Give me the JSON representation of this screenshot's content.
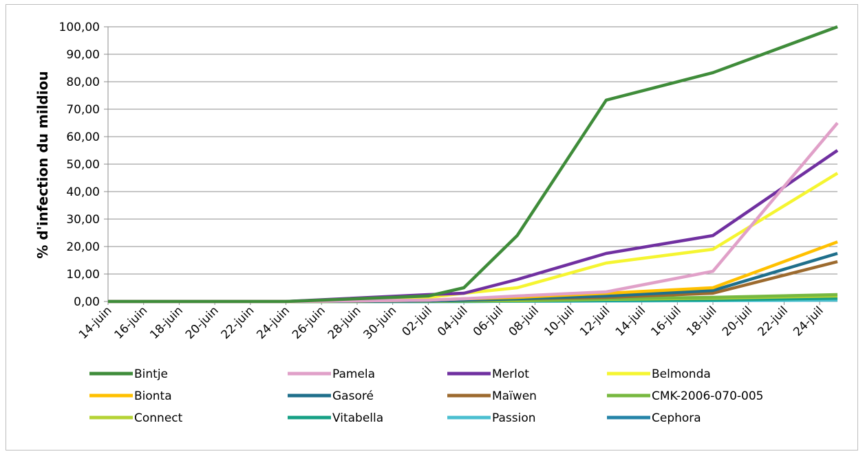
{
  "chart_data": {
    "type": "line",
    "title": "",
    "xlabel": "",
    "ylabel": "% d'infection du mildiou",
    "ylim": [
      0,
      100
    ],
    "y_ticks": [
      "0,00",
      "10,00",
      "20,00",
      "30,00",
      "40,00",
      "50,00",
      "60,00",
      "70,00",
      "80,00",
      "90,00",
      "100,00"
    ],
    "x_ticks": [
      "14-juin",
      "16-juin",
      "18-juin",
      "20-juin",
      "22-juin",
      "24-juin",
      "26-juin",
      "28-juin",
      "30-juin",
      "02-juil",
      "04-juil",
      "06-juil",
      "08-juil",
      "10-juil",
      "12-juil",
      "14-juil",
      "16-juil",
      "18-juil",
      "20-juil",
      "22-juil",
      "24-juil"
    ],
    "grid": "horizontal",
    "legend_position": "bottom",
    "x": [
      "14-juin",
      "24-juin",
      "02-juil",
      "04-juil",
      "07-juil",
      "12-juil",
      "18-juil",
      "25-juil"
    ],
    "series": [
      {
        "name": "Bintje",
        "color": "#3f8c3a",
        "values": [
          0,
          0,
          2,
          5,
          24,
          73.3,
          83.3,
          100
        ]
      },
      {
        "name": "Pamela",
        "color": "#e0a0c8",
        "values": [
          0,
          0,
          0.5,
          1,
          2,
          3.5,
          11,
          65
        ]
      },
      {
        "name": "Merlot",
        "color": "#7030a0",
        "values": [
          0,
          0,
          2.5,
          3,
          8,
          17.5,
          24,
          55
        ]
      },
      {
        "name": "Belmonda",
        "color": "#f5f531",
        "values": [
          0,
          0,
          1.5,
          3,
          5,
          14,
          19,
          46.7
        ]
      },
      {
        "name": "Bionta",
        "color": "#ffc000",
        "values": [
          0,
          0,
          0.5,
          1,
          1.5,
          3,
          5,
          21.7
        ]
      },
      {
        "name": "Gasoré",
        "color": "#1f6f8b",
        "values": [
          0,
          0,
          0.2,
          0.5,
          1,
          2,
          4,
          17.5
        ]
      },
      {
        "name": "Maïwen",
        "color": "#9c6a2e",
        "values": [
          0,
          0,
          0.2,
          0.5,
          1,
          1.5,
          3,
          14.5
        ]
      },
      {
        "name": "CMK-2006-070-005",
        "color": "#77b83f",
        "values": [
          0,
          0,
          0.1,
          0.2,
          0.5,
          1,
          1.5,
          2.5
        ]
      },
      {
        "name": "Connect",
        "color": "#b5d334",
        "values": [
          0,
          0,
          0.1,
          0.2,
          0.3,
          0.8,
          1.2,
          2
        ]
      },
      {
        "name": "Vitabella",
        "color": "#16a085",
        "values": [
          0,
          0,
          0,
          0.1,
          0.2,
          0.4,
          0.6,
          1.2
        ]
      },
      {
        "name": "Passion",
        "color": "#4bbfd0",
        "values": [
          0,
          0,
          0,
          0,
          0.1,
          0.2,
          0.3,
          0.5
        ]
      },
      {
        "name": "Cephora",
        "color": "#2584a8",
        "values": [
          0,
          0,
          0,
          0,
          0.1,
          0.2,
          0.4,
          1
        ]
      }
    ]
  }
}
